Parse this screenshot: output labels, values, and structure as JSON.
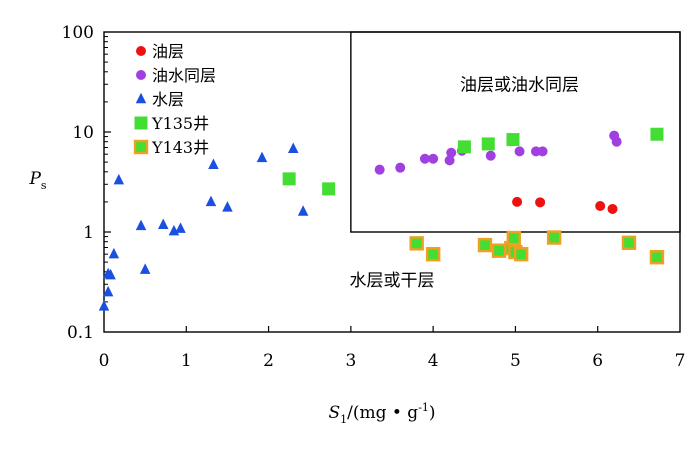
{
  "chart_data": {
    "type": "scatter",
    "title": "",
    "xlabel": {
      "main": "S",
      "sub": "1",
      "unit": "/(mg • g",
      "sup": "-1",
      "close": ")"
    },
    "ylabel": {
      "main": "P",
      "sub": "s"
    },
    "xlim": [
      0,
      7
    ],
    "ylim": [
      0.1,
      100
    ],
    "y_scale": "log",
    "x_ticks": [
      "0",
      "1",
      "2",
      "3",
      "4",
      "5",
      "6",
      "7"
    ],
    "y_ticks": [
      {
        "value": 0.1,
        "label": "0.1"
      },
      {
        "value": 1,
        "label": "1"
      },
      {
        "value": 10,
        "label": "10"
      },
      {
        "value": 100,
        "label": "100"
      }
    ],
    "grid": false,
    "legend_position": "top-left",
    "regions": [
      {
        "label": "油层或油水同层",
        "x_range": [
          3,
          7
        ],
        "y_range": [
          1,
          100
        ]
      },
      {
        "label": "水层或干层",
        "x_range": [
          0,
          7
        ],
        "y_range": [
          0.1,
          1
        ]
      }
    ],
    "series": [
      {
        "name": "油层",
        "marker": "circle",
        "color": "#ee1111",
        "points": [
          [
            5.02,
            2.0
          ],
          [
            5.3,
            1.98
          ],
          [
            6.03,
            1.82
          ],
          [
            6.18,
            1.7
          ]
        ]
      },
      {
        "name": "油水同层",
        "marker": "circle",
        "color": "#a040e0",
        "points": [
          [
            3.35,
            4.2
          ],
          [
            3.6,
            4.4
          ],
          [
            3.9,
            5.4
          ],
          [
            4.0,
            5.4
          ],
          [
            4.2,
            5.2
          ],
          [
            4.22,
            6.2
          ],
          [
            4.35,
            6.5
          ],
          [
            4.7,
            5.8
          ],
          [
            5.05,
            6.4
          ],
          [
            5.25,
            6.4
          ],
          [
            5.33,
            6.4
          ],
          [
            6.2,
            9.2
          ],
          [
            6.23,
            8.0
          ]
        ]
      },
      {
        "name": "水层",
        "marker": "triangle",
        "color": "#1a4fe0",
        "points": [
          [
            0.0,
            0.18
          ],
          [
            0.05,
            0.38
          ],
          [
            0.05,
            0.25
          ],
          [
            0.08,
            0.37
          ],
          [
            0.12,
            0.6
          ],
          [
            0.18,
            3.3
          ],
          [
            0.45,
            1.15
          ],
          [
            0.5,
            0.42
          ],
          [
            0.72,
            1.18
          ],
          [
            0.85,
            1.02
          ],
          [
            0.93,
            1.08
          ],
          [
            1.3,
            2.0
          ],
          [
            1.33,
            4.7
          ],
          [
            1.5,
            1.76
          ],
          [
            1.92,
            5.5
          ],
          [
            2.3,
            6.8
          ],
          [
            2.42,
            1.6
          ]
        ]
      },
      {
        "name": "Y135井",
        "marker": "square",
        "color": "#44dd33",
        "points": [
          [
            2.25,
            3.4
          ],
          [
            2.73,
            2.7
          ],
          [
            4.38,
            7.1
          ],
          [
            4.67,
            7.6
          ],
          [
            4.97,
            8.4
          ],
          [
            6.72,
            9.5
          ]
        ]
      },
      {
        "name": "Y143井",
        "marker": "square-outlined",
        "color": "#44dd33",
        "edge_color": "#f0a020",
        "points": [
          [
            3.8,
            0.77
          ],
          [
            4.0,
            0.6
          ],
          [
            4.63,
            0.74
          ],
          [
            4.8,
            0.65
          ],
          [
            4.95,
            0.69
          ],
          [
            4.98,
            0.87
          ],
          [
            5.0,
            0.63
          ],
          [
            5.07,
            0.6
          ],
          [
            5.47,
            0.88
          ],
          [
            6.38,
            0.78
          ],
          [
            6.72,
            0.56
          ]
        ]
      }
    ]
  }
}
